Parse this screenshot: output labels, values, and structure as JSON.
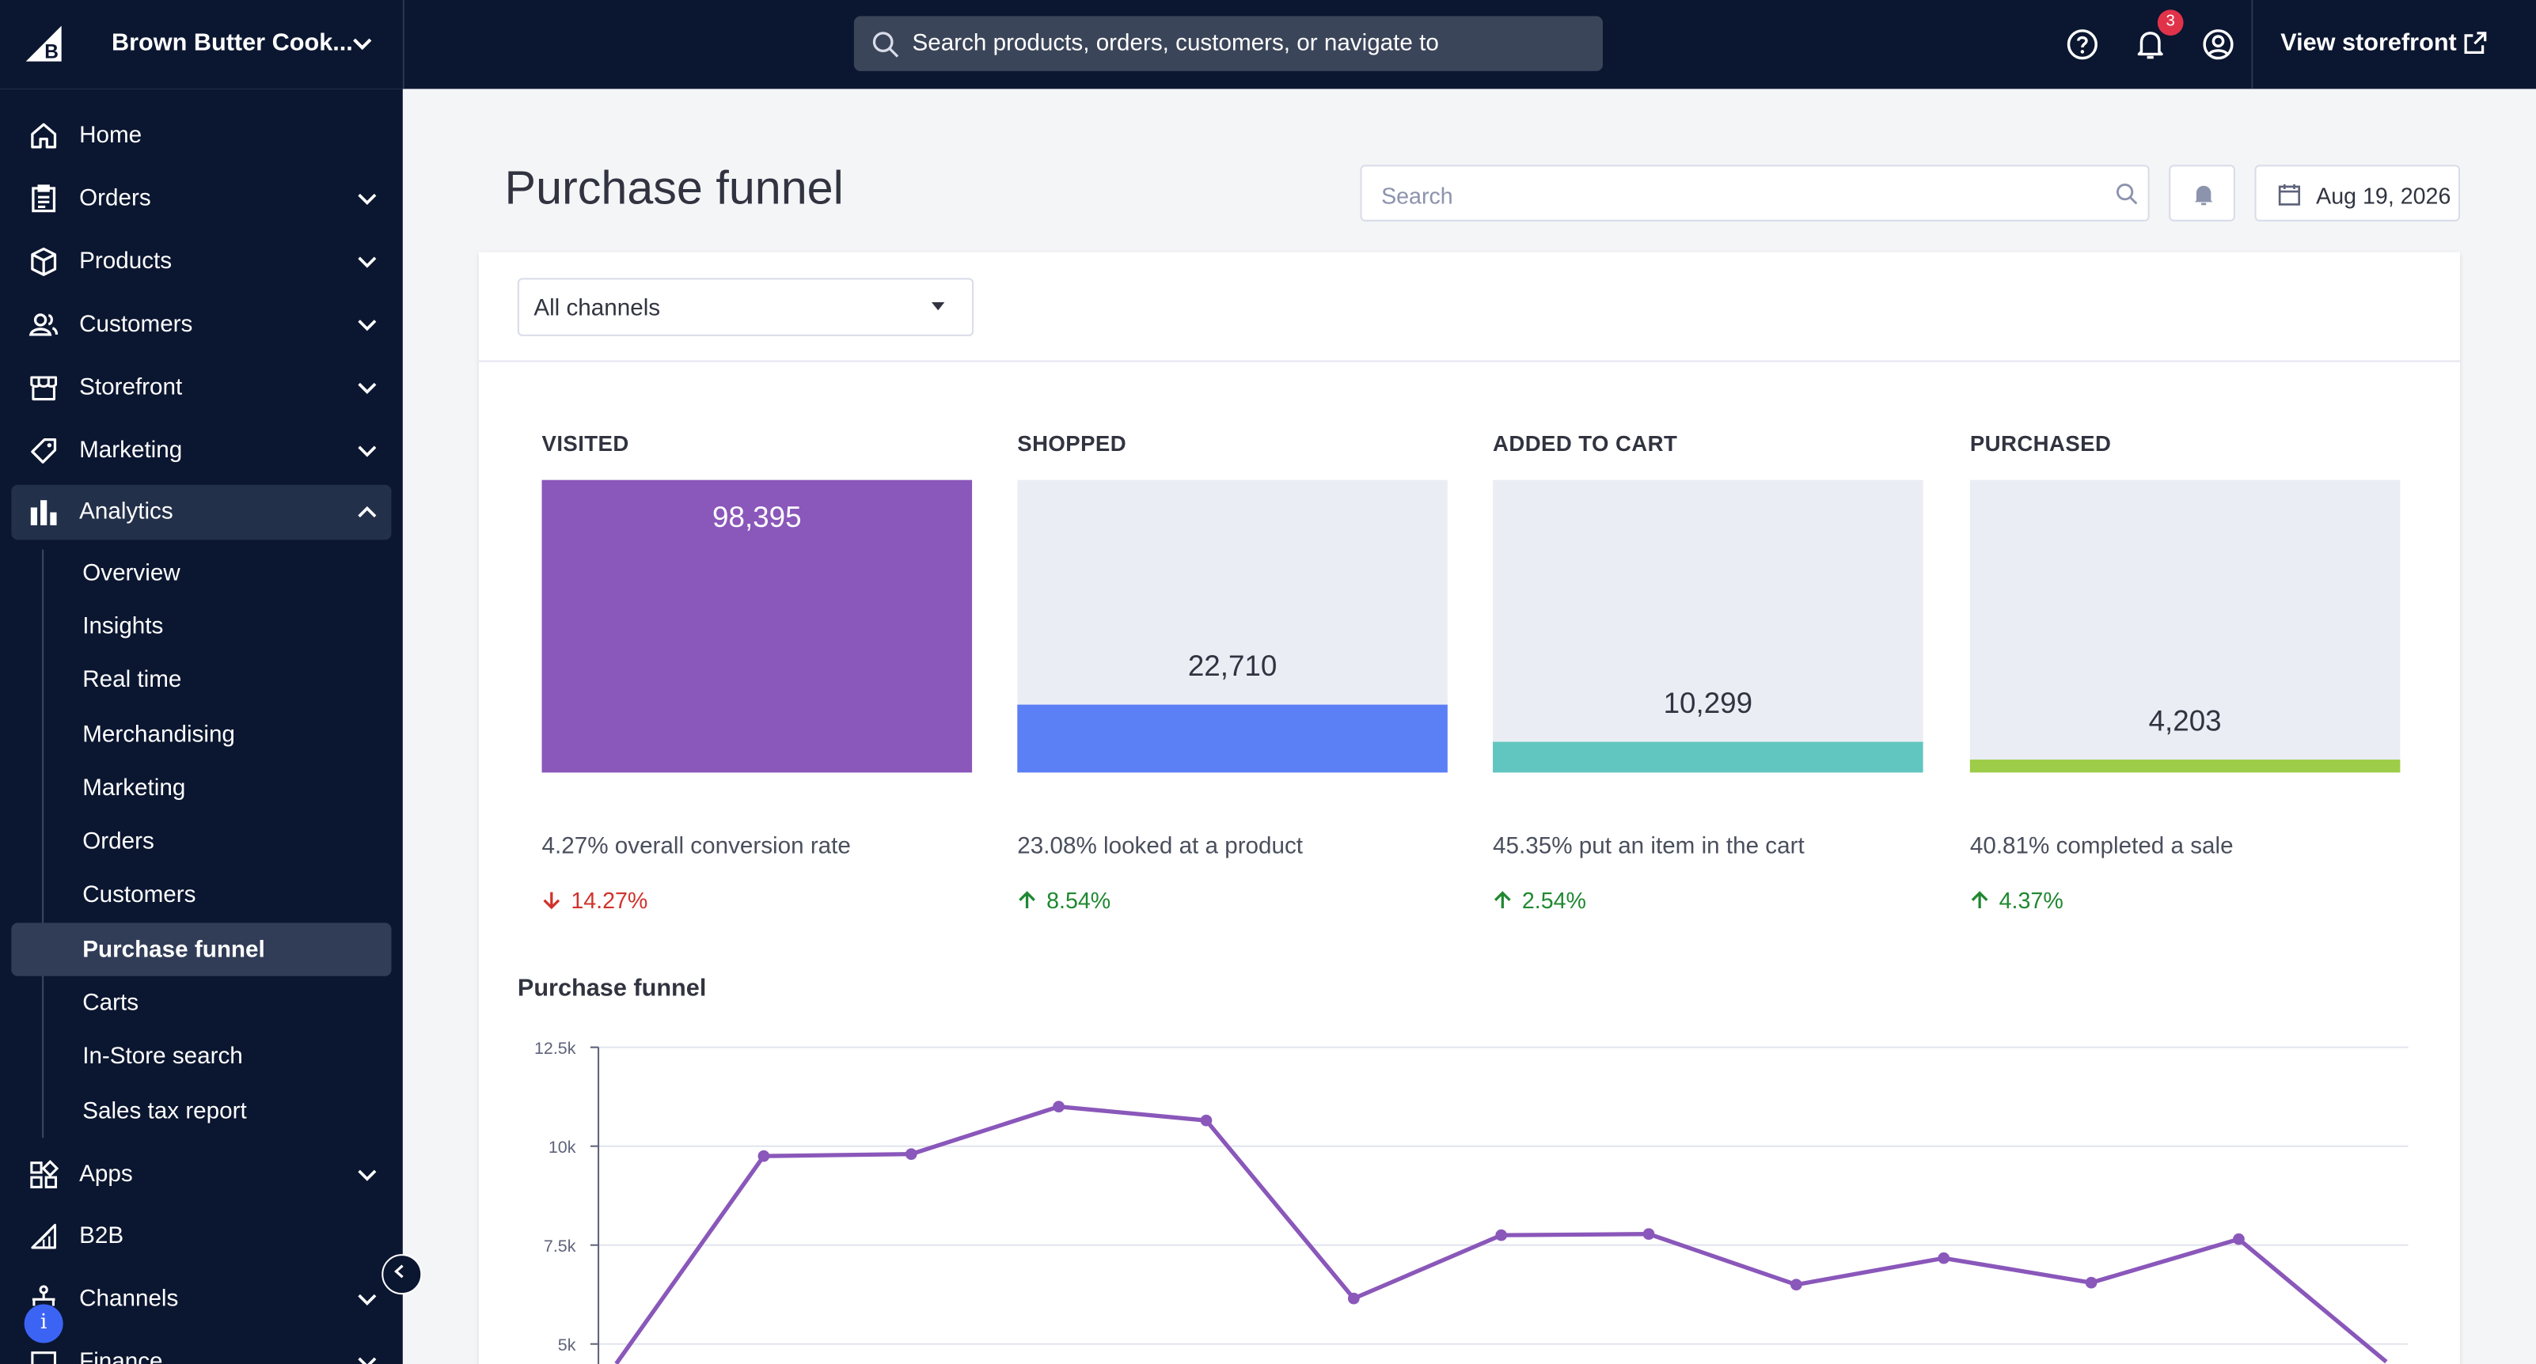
{
  "topbar": {
    "store_name": "Brown Butter Cook...",
    "search_placeholder": "Search products, orders, customers, or navigate to",
    "notification_count": "3",
    "view_storefront": "View storefront"
  },
  "sidebar": {
    "items": [
      {
        "label": "Home",
        "icon": "home-icon",
        "expandable": false
      },
      {
        "label": "Orders",
        "icon": "orders-icon",
        "expandable": true
      },
      {
        "label": "Products",
        "icon": "products-icon",
        "expandable": true
      },
      {
        "label": "Customers",
        "icon": "customers-icon",
        "expandable": true
      },
      {
        "label": "Storefront",
        "icon": "storefront-icon",
        "expandable": true
      },
      {
        "label": "Marketing",
        "icon": "tag-icon",
        "expandable": true
      },
      {
        "label": "Analytics",
        "icon": "bar-chart-icon",
        "expandable": true,
        "expanded": true
      }
    ],
    "analytics_sub": [
      "Overview",
      "Insights",
      "Real time",
      "Merchandising",
      "Marketing",
      "Orders",
      "Customers",
      "Purchase funnel",
      "Carts",
      "In-Store search",
      "Sales tax report"
    ],
    "active_sub": "Purchase funnel",
    "lower_items": [
      {
        "label": "Apps",
        "icon": "apps-icon",
        "expandable": true
      },
      {
        "label": "B2B",
        "icon": "b2b-icon",
        "expandable": false
      },
      {
        "label": "Channels",
        "icon": "channels-icon",
        "expandable": true
      },
      {
        "label": "Finance",
        "icon": "finance-icon",
        "expandable": true
      }
    ]
  },
  "page": {
    "title": "Purchase funnel",
    "search_placeholder": "Search",
    "date": "Aug 19, 2026",
    "channel_filter": "All channels"
  },
  "funnel": [
    {
      "title": "VISITED",
      "value": "98,395",
      "fill_fraction": 1.0,
      "color": "#8a57ba",
      "description": "4.27% overall conversion rate",
      "change": "14.27%",
      "direction": "down",
      "change_color": "#d0332d"
    },
    {
      "title": "SHOPPED",
      "value": "22,710",
      "fill_fraction": 0.2308,
      "color": "#5b7ff5",
      "description": "23.08% looked at a product",
      "change": "8.54%",
      "direction": "up",
      "change_color": "#208831"
    },
    {
      "title": "ADDED TO CART",
      "value": "10,299",
      "fill_fraction": 0.1047,
      "color": "#61c6bf",
      "description": "45.35% put an item in the cart",
      "change": "2.54%",
      "direction": "up",
      "change_color": "#208831"
    },
    {
      "title": "PURCHASED",
      "value": "4,203",
      "fill_fraction": 0.0427,
      "color": "#9dcc48",
      "description": "40.81% completed a sale",
      "change": "4.37%",
      "direction": "up",
      "change_color": "#208831"
    }
  ],
  "chart_title": "Purchase funnel",
  "chart_data": {
    "type": "line",
    "title": "Purchase funnel",
    "ylim": [
      0,
      12500
    ],
    "yticks": [
      5000,
      7500,
      10000,
      12500
    ],
    "ytick_labels": [
      "5k",
      "7.5k",
      "10k",
      "12.5k"
    ],
    "grid": true,
    "series": [
      {
        "color": "#8a57ba",
        "values": [
          4500,
          9750,
          9800,
          11000,
          10650,
          6150,
          7750,
          7780,
          6500,
          7170,
          6550,
          7650,
          4550
        ]
      }
    ]
  }
}
